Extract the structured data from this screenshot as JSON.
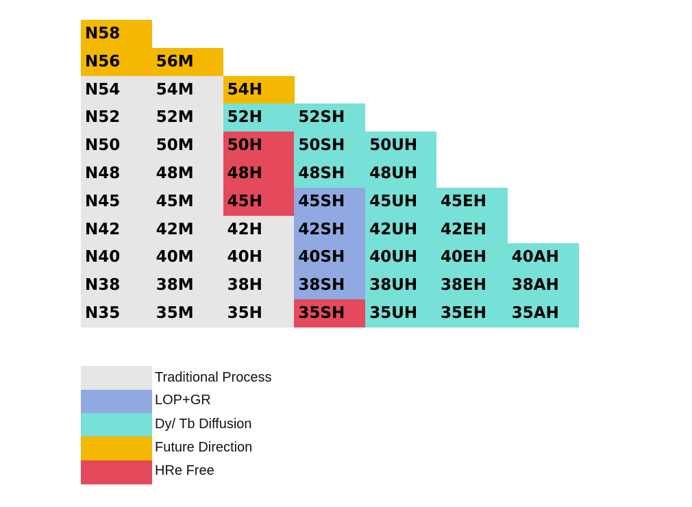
{
  "colors": {
    "traditional": "#e6e6e6",
    "lop_gr": "#90a9e0",
    "diffusion": "#77e0d7",
    "future": "#f4b800",
    "hre_free": "#e44a5c"
  },
  "grid": {
    "rows": [
      {
        "cells": [
          {
            "text": "N58",
            "cat": "future"
          }
        ]
      },
      {
        "cells": [
          {
            "text": "N56",
            "cat": "future"
          },
          {
            "text": "56M",
            "cat": "future"
          }
        ]
      },
      {
        "cells": [
          {
            "text": "N54",
            "cat": "traditional"
          },
          {
            "text": "54M",
            "cat": "traditional"
          },
          {
            "text": "54H",
            "cat": "future"
          }
        ]
      },
      {
        "cells": [
          {
            "text": "N52",
            "cat": "traditional"
          },
          {
            "text": "52M",
            "cat": "traditional"
          },
          {
            "text": "52H",
            "cat": "diffusion"
          },
          {
            "text": "52SH",
            "cat": "diffusion"
          }
        ]
      },
      {
        "cells": [
          {
            "text": "N50",
            "cat": "traditional"
          },
          {
            "text": "50M",
            "cat": "traditional"
          },
          {
            "text": "50H",
            "cat": "hre_free"
          },
          {
            "text": "50SH",
            "cat": "diffusion"
          },
          {
            "text": "50UH",
            "cat": "diffusion"
          }
        ]
      },
      {
        "cells": [
          {
            "text": "N48",
            "cat": "traditional"
          },
          {
            "text": "48M",
            "cat": "traditional"
          },
          {
            "text": "48H",
            "cat": "hre_free"
          },
          {
            "text": "48SH",
            "cat": "diffusion"
          },
          {
            "text": "48UH",
            "cat": "diffusion"
          }
        ]
      },
      {
        "cells": [
          {
            "text": "N45",
            "cat": "traditional"
          },
          {
            "text": "45M",
            "cat": "traditional"
          },
          {
            "text": "45H",
            "cat": "hre_free"
          },
          {
            "text": "45SH",
            "cat": "lop_gr"
          },
          {
            "text": "45UH",
            "cat": "diffusion"
          },
          {
            "text": "45EH",
            "cat": "diffusion"
          }
        ]
      },
      {
        "cells": [
          {
            "text": "N42",
            "cat": "traditional"
          },
          {
            "text": "42M",
            "cat": "traditional"
          },
          {
            "text": "42H",
            "cat": "traditional"
          },
          {
            "text": "42SH",
            "cat": "lop_gr"
          },
          {
            "text": "42UH",
            "cat": "diffusion"
          },
          {
            "text": "42EH",
            "cat": "diffusion"
          }
        ]
      },
      {
        "cells": [
          {
            "text": "N40",
            "cat": "traditional"
          },
          {
            "text": "40M",
            "cat": "traditional"
          },
          {
            "text": "40H",
            "cat": "traditional"
          },
          {
            "text": "40SH",
            "cat": "lop_gr"
          },
          {
            "text": "40UH",
            "cat": "diffusion"
          },
          {
            "text": "40EH",
            "cat": "diffusion"
          },
          {
            "text": "40AH",
            "cat": "diffusion"
          }
        ]
      },
      {
        "cells": [
          {
            "text": "N38",
            "cat": "traditional"
          },
          {
            "text": "38M",
            "cat": "traditional"
          },
          {
            "text": "38H",
            "cat": "traditional"
          },
          {
            "text": "38SH",
            "cat": "lop_gr"
          },
          {
            "text": "38UH",
            "cat": "diffusion"
          },
          {
            "text": "38EH",
            "cat": "diffusion"
          },
          {
            "text": "38AH",
            "cat": "diffusion"
          }
        ]
      },
      {
        "cells": [
          {
            "text": "N35",
            "cat": "traditional"
          },
          {
            "text": "35M",
            "cat": "traditional"
          },
          {
            "text": "35H",
            "cat": "traditional"
          },
          {
            "text": "35SH",
            "cat": "hre_free"
          },
          {
            "text": "35UH",
            "cat": "diffusion"
          },
          {
            "text": "35EH",
            "cat": "diffusion"
          },
          {
            "text": "35AH",
            "cat": "diffusion"
          }
        ]
      }
    ]
  },
  "legend": {
    "items": [
      {
        "cat": "traditional",
        "label": "Traditional Process"
      },
      {
        "cat": "lop_gr",
        "label": "LOP+GR"
      },
      {
        "cat": "diffusion",
        "label": "Dy/ Tb Diffusion"
      },
      {
        "cat": "future",
        "label": "Future Direction"
      },
      {
        "cat": "hre_free",
        "label": "HRe Free"
      }
    ]
  }
}
